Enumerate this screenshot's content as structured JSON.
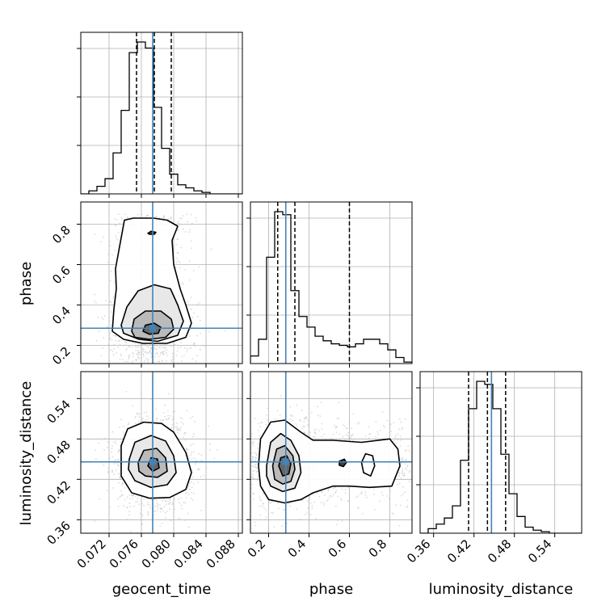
{
  "chart_data": {
    "type": "corner",
    "parameters": [
      {
        "key": "geocent_time",
        "label": "geocent_time",
        "range": [
          0.0685,
          0.0885
        ],
        "ticks": [
          0.072,
          0.076,
          0.08,
          0.084,
          0.088
        ],
        "tick_labels": [
          "0.072",
          "0.076",
          "0.080",
          "0.084",
          "0.088"
        ],
        "truth": 0.0774,
        "quantiles": [
          0.0754,
          0.0776,
          0.0797
        ],
        "hist_edges_start": 0.0685,
        "hist_bin_width": 0.001,
        "hist_values": [
          0,
          2,
          5,
          10,
          27,
          55,
          93,
          100,
          96,
          57,
          30,
          13,
          6,
          4,
          2,
          1,
          0,
          0,
          0,
          0
        ],
        "hist_max": 100
      },
      {
        "key": "phase",
        "label": "phase",
        "range": [
          0.11,
          0.91
        ],
        "ticks": [
          0.2,
          0.4,
          0.6,
          0.8
        ],
        "tick_labels": [
          "0.2",
          "0.4",
          "0.6",
          "0.8"
        ],
        "truth": 0.285,
        "quantiles": [
          0.245,
          0.285,
          0.33,
          0.6
        ],
        "hist_edges_start": 0.11,
        "hist_bin_width": 0.04,
        "hist_values": [
          5,
          16,
          70,
          100,
          98,
          48,
          31,
          24,
          18,
          15,
          13,
          12,
          11,
          13,
          16,
          16,
          13,
          9,
          4,
          1
        ],
        "hist_max": 100
      },
      {
        "key": "luminosity_distance",
        "label": "luminosity_distance",
        "range": [
          0.34,
          0.58
        ],
        "ticks": [
          0.36,
          0.42,
          0.48,
          0.54
        ],
        "tick_labels": [
          "0.36",
          "0.42",
          "0.48",
          "0.54"
        ],
        "truth": 0.446,
        "quantiles": [
          0.412,
          0.44,
          0.467
        ],
        "hist_edges_start": 0.34,
        "hist_bin_width": 0.012,
        "hist_values": [
          0,
          3,
          6,
          10,
          18,
          48,
          82,
          100,
          98,
          82,
          52,
          26,
          11,
          4,
          2,
          1,
          0,
          0,
          0,
          0
        ],
        "hist_max": 100
      }
    ],
    "hist_y_ticks_fraction": [
      0.3,
      0.6,
      0.9
    ],
    "pairs": [
      {
        "x": "geocent_time",
        "y": "phase",
        "center": [
          0.0772,
          0.285
        ],
        "spread": [
          0.0016,
          0.08
        ],
        "contours": [
          [
            [
              0.0728,
              0.58
            ],
            [
              0.0739,
              0.82
            ],
            [
              0.075,
              0.83
            ],
            [
              0.0775,
              0.83
            ],
            [
              0.0792,
              0.82
            ],
            [
              0.0805,
              0.79
            ],
            [
              0.0798,
              0.72
            ],
            [
              0.08,
              0.6
            ],
            [
              0.0808,
              0.48
            ],
            [
              0.0815,
              0.4
            ],
            [
              0.0822,
              0.31
            ],
            [
              0.0815,
              0.24
            ],
            [
              0.0792,
              0.21
            ],
            [
              0.0762,
              0.21
            ],
            [
              0.0738,
              0.23
            ],
            [
              0.0724,
              0.27
            ],
            [
              0.0726,
              0.38
            ],
            [
              0.0729,
              0.48
            ]
          ],
          [
            [
              0.0735,
              0.3
            ],
            [
              0.0742,
              0.39
            ],
            [
              0.0756,
              0.47
            ],
            [
              0.0776,
              0.5
            ],
            [
              0.0796,
              0.48
            ],
            [
              0.0805,
              0.4
            ],
            [
              0.0812,
              0.32
            ],
            [
              0.0805,
              0.25
            ],
            [
              0.078,
              0.22
            ],
            [
              0.0757,
              0.23
            ],
            [
              0.0738,
              0.26
            ]
          ],
          [
            [
              0.0748,
              0.27
            ],
            [
              0.0751,
              0.33
            ],
            [
              0.0765,
              0.37
            ],
            [
              0.0784,
              0.37
            ],
            [
              0.0797,
              0.33
            ],
            [
              0.08,
              0.28
            ],
            [
              0.079,
              0.24
            ],
            [
              0.077,
              0.23
            ],
            [
              0.0752,
              0.24
            ]
          ],
          [
            [
              0.0762,
              0.27
            ],
            [
              0.0765,
              0.3
            ],
            [
              0.0776,
              0.31
            ],
            [
              0.0784,
              0.29
            ],
            [
              0.0781,
              0.26
            ],
            [
              0.077,
              0.255
            ]
          ],
          [
            [
              0.0768,
              0.755
            ],
            [
              0.0772,
              0.765
            ],
            [
              0.0778,
              0.76
            ],
            [
              0.0776,
              0.75
            ],
            [
              0.077,
              0.75
            ]
          ]
        ]
      },
      {
        "x": "geocent_time",
        "y": "luminosity_distance",
        "center": [
          0.0776,
          0.443
        ],
        "spread": [
          0.0016,
          0.022
        ],
        "contours": [
          [
            [
              0.0735,
              0.47
            ],
            [
              0.0743,
              0.495
            ],
            [
              0.0763,
              0.505
            ],
            [
              0.0785,
              0.503
            ],
            [
              0.08,
              0.49
            ],
            [
              0.0815,
              0.46
            ],
            [
              0.0822,
              0.43
            ],
            [
              0.0815,
              0.405
            ],
            [
              0.0795,
              0.393
            ],
            [
              0.077,
              0.392
            ],
            [
              0.0748,
              0.4
            ],
            [
              0.0735,
              0.425
            ]
          ],
          [
            [
              0.0745,
              0.45
            ],
            [
              0.0752,
              0.475
            ],
            [
              0.0772,
              0.485
            ],
            [
              0.079,
              0.477
            ],
            [
              0.08,
              0.455
            ],
            [
              0.0803,
              0.43
            ],
            [
              0.0792,
              0.412
            ],
            [
              0.0772,
              0.408
            ],
            [
              0.0752,
              0.418
            ],
            [
              0.0744,
              0.435
            ]
          ],
          [
            [
              0.0756,
              0.445
            ],
            [
              0.0763,
              0.463
            ],
            [
              0.0779,
              0.466
            ],
            [
              0.079,
              0.452
            ],
            [
              0.0792,
              0.432
            ],
            [
              0.078,
              0.423
            ],
            [
              0.0765,
              0.425
            ],
            [
              0.0757,
              0.432
            ]
          ],
          [
            [
              0.0768,
              0.44
            ],
            [
              0.0772,
              0.452
            ],
            [
              0.078,
              0.45
            ],
            [
              0.0782,
              0.437
            ],
            [
              0.0774,
              0.432
            ]
          ]
        ]
      },
      {
        "x": "phase",
        "y": "luminosity_distance",
        "center": [
          0.28,
          0.443
        ],
        "spread": [
          0.09,
          0.022
        ],
        "contours": [
          [
            [
              0.15,
              0.44
            ],
            [
              0.16,
              0.48
            ],
            [
              0.21,
              0.505
            ],
            [
              0.28,
              0.508
            ],
            [
              0.36,
              0.49
            ],
            [
              0.42,
              0.478
            ],
            [
              0.52,
              0.478
            ],
            [
              0.66,
              0.475
            ],
            [
              0.8,
              0.48
            ],
            [
              0.84,
              0.465
            ],
            [
              0.85,
              0.44
            ],
            [
              0.81,
              0.41
            ],
            [
              0.7,
              0.408
            ],
            [
              0.6,
              0.41
            ],
            [
              0.52,
              0.41
            ],
            [
              0.42,
              0.4
            ],
            [
              0.36,
              0.39
            ],
            [
              0.28,
              0.385
            ],
            [
              0.2,
              0.39
            ],
            [
              0.16,
              0.41
            ]
          ],
          [
            [
              0.19,
              0.44
            ],
            [
              0.21,
              0.475
            ],
            [
              0.26,
              0.488
            ],
            [
              0.31,
              0.478
            ],
            [
              0.35,
              0.455
            ],
            [
              0.36,
              0.43
            ],
            [
              0.33,
              0.407
            ],
            [
              0.27,
              0.402
            ],
            [
              0.21,
              0.41
            ],
            [
              0.19,
              0.425
            ]
          ],
          [
            [
              0.22,
              0.44
            ],
            [
              0.24,
              0.465
            ],
            [
              0.28,
              0.47
            ],
            [
              0.32,
              0.455
            ],
            [
              0.33,
              0.435
            ],
            [
              0.31,
              0.417
            ],
            [
              0.27,
              0.413
            ],
            [
              0.23,
              0.42
            ]
          ],
          [
            [
              0.25,
              0.44
            ],
            [
              0.26,
              0.452
            ],
            [
              0.29,
              0.455
            ],
            [
              0.31,
              0.443
            ],
            [
              0.3,
              0.428
            ],
            [
              0.27,
              0.425
            ]
          ],
          [
            [
              0.55,
              0.447
            ],
            [
              0.575,
              0.45
            ],
            [
              0.585,
              0.445
            ],
            [
              0.57,
              0.439
            ],
            [
              0.55,
              0.441
            ]
          ],
          [
            [
              0.66,
              0.445
            ],
            [
              0.68,
              0.458
            ],
            [
              0.715,
              0.455
            ],
            [
              0.725,
              0.44
            ],
            [
              0.705,
              0.425
            ],
            [
              0.67,
              0.43
            ]
          ]
        ]
      }
    ]
  },
  "colors": {
    "truth_line": "#4682b4",
    "hist_line": "#000000",
    "quantile_line": "#000000",
    "contour_line": "#000000",
    "grid": "#b0b0b0",
    "scatter": "#bdbdbd",
    "density_dark": "#1f1f1f"
  }
}
